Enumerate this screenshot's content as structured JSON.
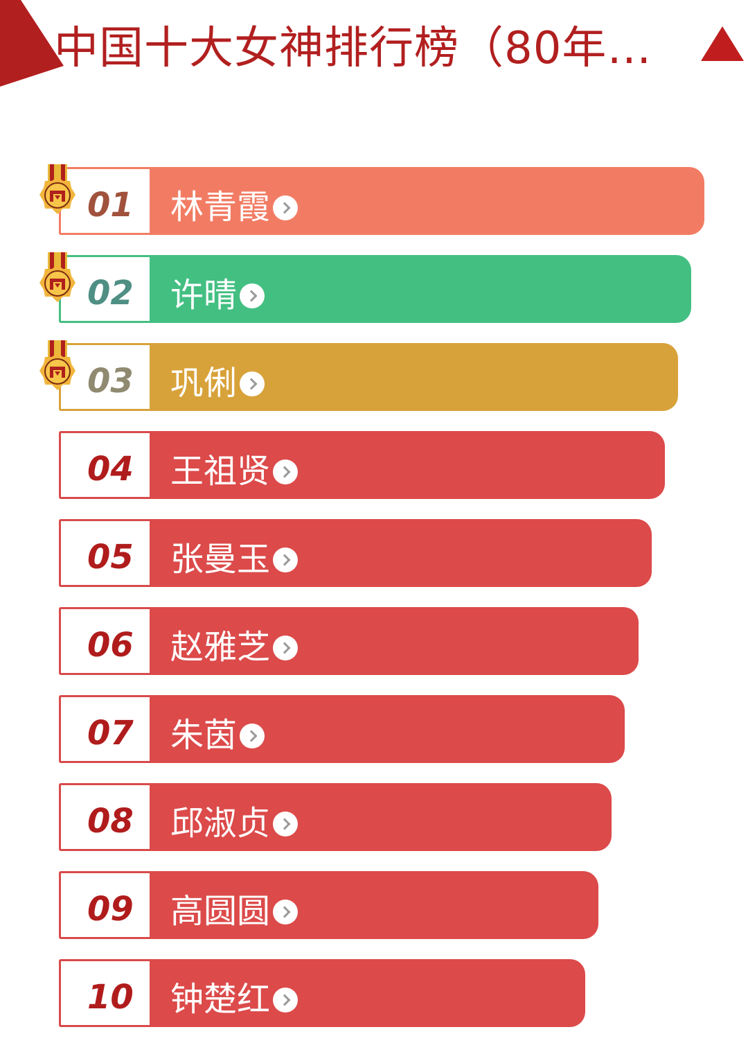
{
  "header": {
    "title": "中国十大女神排行榜（80年…",
    "collapse_icon": "triangle-up-icon",
    "accent": "#b21f1f"
  },
  "ranking": [
    {
      "rank": "01",
      "name": "林青霞",
      "color": "#f27c63",
      "num_color": "#a0523c",
      "medal": true
    },
    {
      "rank": "02",
      "name": "许晴",
      "color": "#43bf82",
      "num_color": "#4f8f84",
      "medal": true
    },
    {
      "rank": "03",
      "name": "巩俐",
      "color": "#d8a23a",
      "num_color": "#8f8a70",
      "medal": true
    },
    {
      "rank": "04",
      "name": "王祖贤",
      "color": "#dc4a4a",
      "num_color": "#b01c1c",
      "medal": false
    },
    {
      "rank": "05",
      "name": "张曼玉",
      "color": "#dc4a4a",
      "num_color": "#b01c1c",
      "medal": false
    },
    {
      "rank": "06",
      "name": "赵雅芝",
      "color": "#dc4a4a",
      "num_color": "#b01c1c",
      "medal": false
    },
    {
      "rank": "07",
      "name": "朱茵",
      "color": "#dc4a4a",
      "num_color": "#b01c1c",
      "medal": false
    },
    {
      "rank": "08",
      "name": "邱淑贞",
      "color": "#dc4a4a",
      "num_color": "#b01c1c",
      "medal": false
    },
    {
      "rank": "09",
      "name": "高圆圆",
      "color": "#dc4a4a",
      "num_color": "#b01c1c",
      "medal": false
    },
    {
      "rank": "10",
      "name": "钟楚红",
      "color": "#dc4a4a",
      "num_color": "#b01c1c",
      "medal": false
    }
  ]
}
